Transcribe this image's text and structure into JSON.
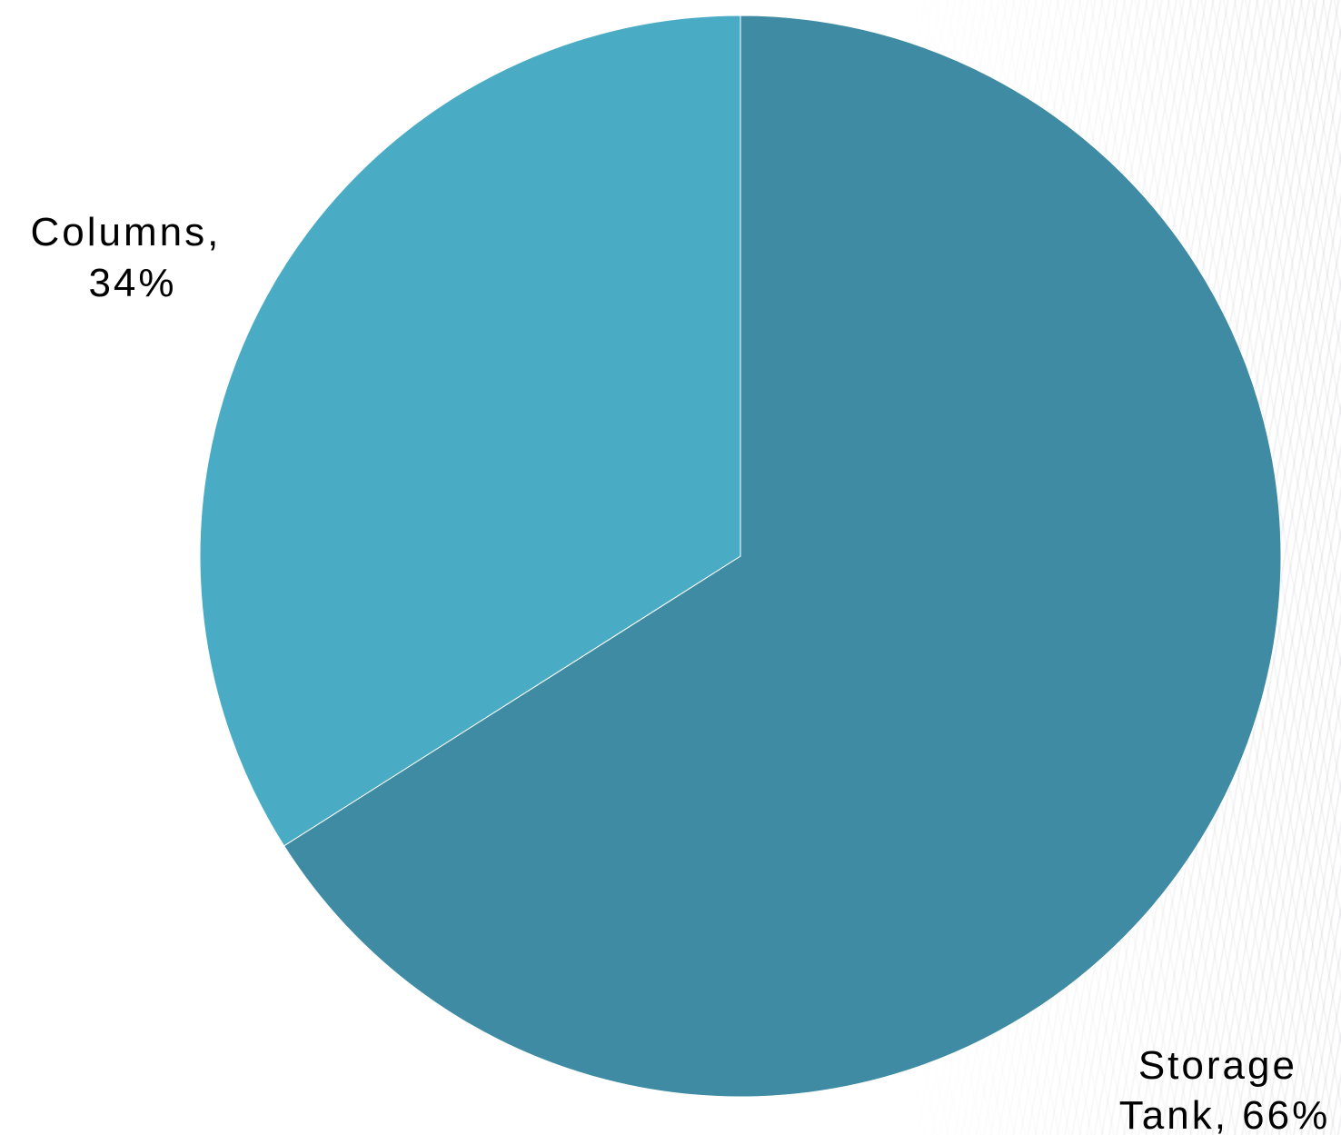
{
  "chart_data": {
    "type": "pie",
    "title": "",
    "slices": [
      {
        "category": "Storage Tank",
        "value": 66,
        "label_line1": "Storage",
        "label_line2": "Tank, 66%",
        "color": "#3E8BA3"
      },
      {
        "category": "Columns",
        "value": 34,
        "label_line1": "Columns,",
        "label_line2": "34%",
        "color": "#4AABC5"
      }
    ],
    "start_angle": "12 o'clock",
    "direction": "clockwise",
    "legend": "none"
  }
}
